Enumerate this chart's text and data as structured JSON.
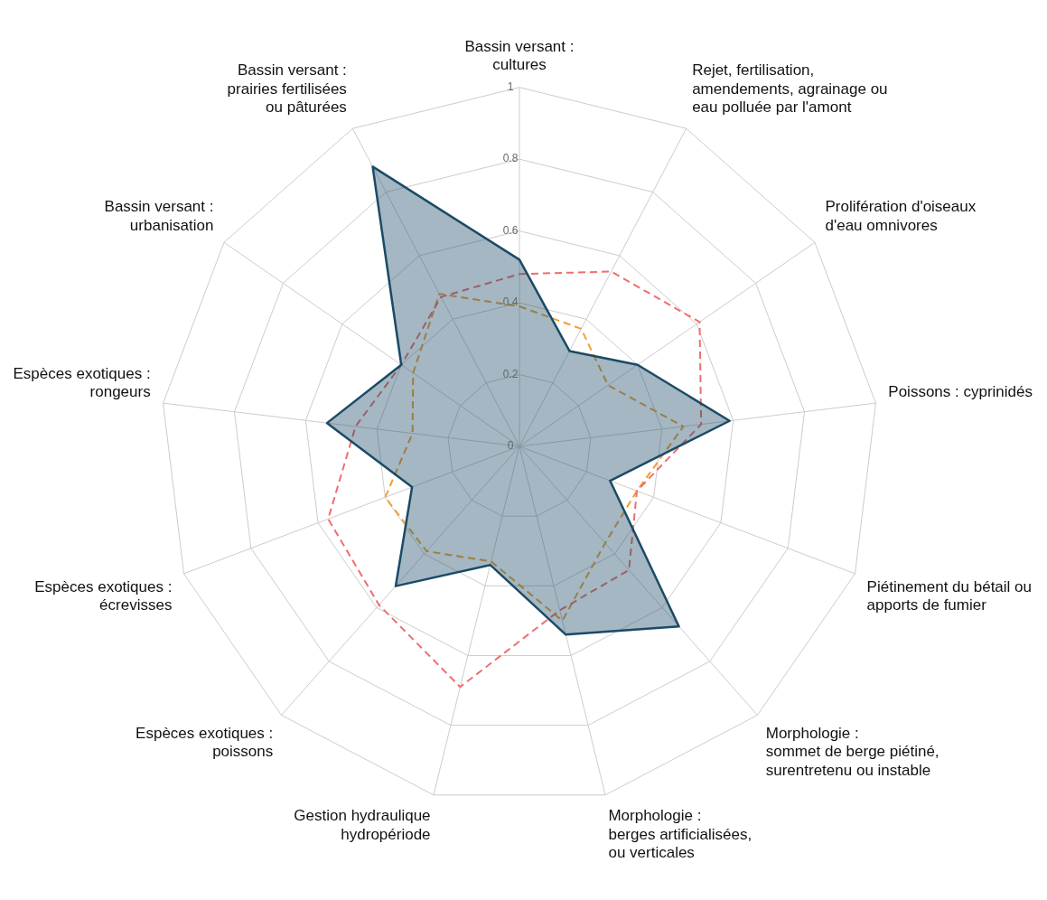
{
  "chart_data": {
    "type": "radar",
    "categories": [
      "Bassin versant :\ncultures",
      "Rejet, fertilisation,\namendements, agrainage ou\neau polluée par l'amont",
      "Prolifération d'oiseaux\nd'eau omnivores",
      "Poissons : cyprinidés",
      "Piétinement du bétail ou\napports de fumier",
      "Morphologie :\nsommet de berge piétiné,\nsurentretenu ou instable",
      "Morphologie :\nberges artificialisées,\nou verticales",
      "Gestion hydraulique\nhydropériode",
      "Espèces exotiques :\npoissons",
      "Espèces exotiques :\nécrevisses",
      "Espèces exotiques :\nrongeurs",
      "Bassin versant :\nurbanisation",
      "Bassin versant :\nprairies fertilisées\nou pâturées"
    ],
    "ylim": [
      0,
      1
    ],
    "yticks": [
      0,
      0.2,
      0.4,
      0.6,
      0.8,
      1
    ],
    "grid": true,
    "legend": false,
    "marker": "none",
    "series": [
      {
        "color": "#1b4a66",
        "line_style": "solid",
        "values": [
          0.52,
          0.3,
          0.4,
          0.59,
          0.27,
          0.67,
          0.54,
          0.34,
          0.52,
          0.32,
          0.54,
          0.4,
          0.88
        ]
      },
      {
        "color": "#f06e6e",
        "line_style": "dashed",
        "values": [
          0.48,
          0.55,
          0.61,
          0.51,
          0.35,
          0.46,
          0.47,
          0.69,
          0.59,
          0.57,
          0.46,
          0.4,
          0.47
        ]
      },
      {
        "color": "#f0a030",
        "line_style": "dashed",
        "values": [
          0.39,
          0.37,
          0.3,
          0.46,
          0.35,
          0.36,
          0.5,
          0.33,
          0.39,
          0.4,
          0.3,
          0.36,
          0.48
        ]
      }
    ]
  }
}
